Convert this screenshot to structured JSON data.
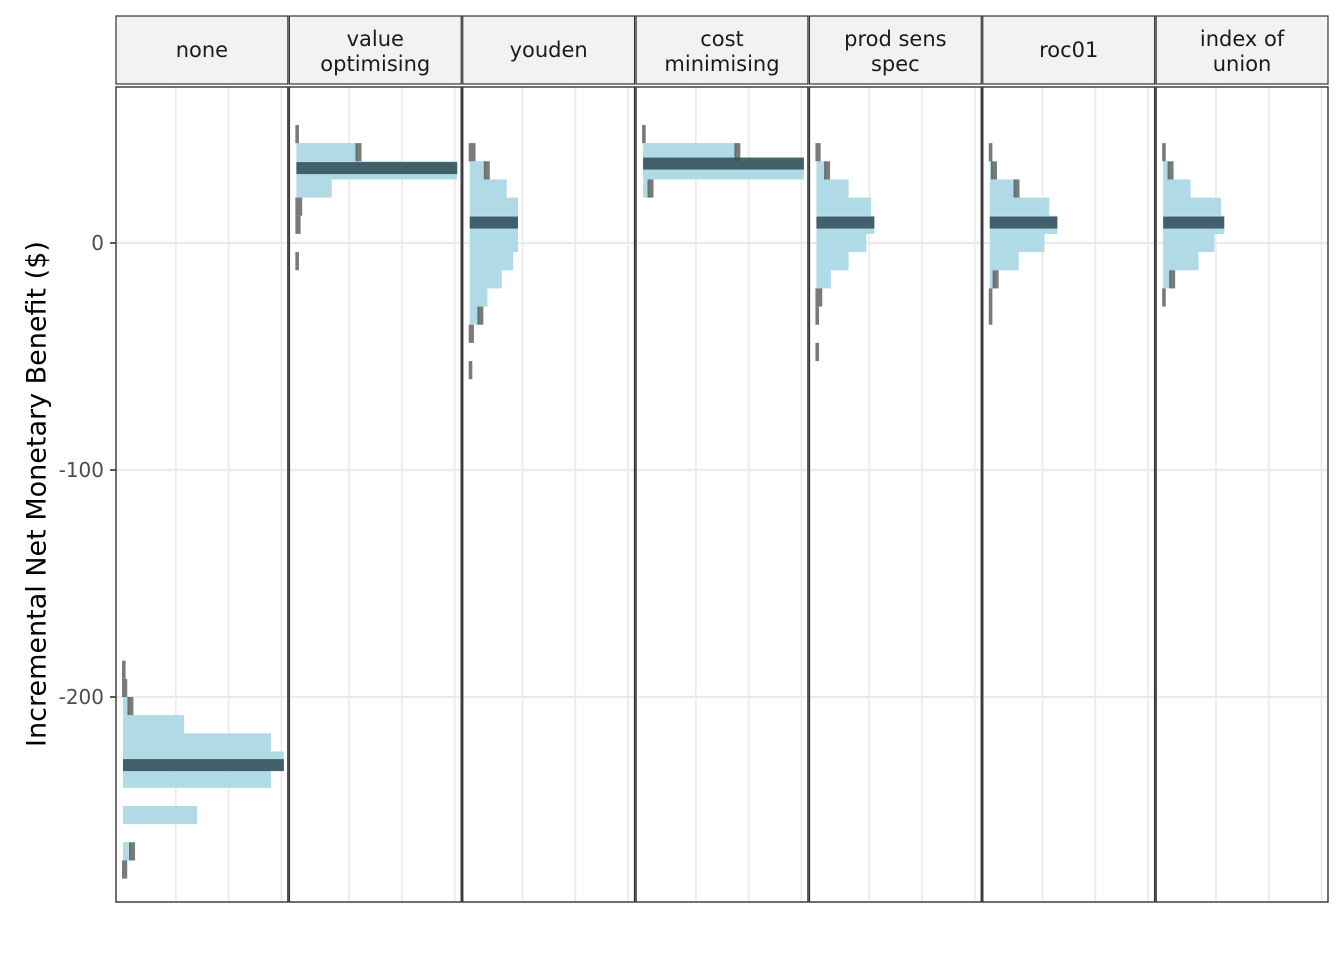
{
  "chart_data": {
    "type": "histogram",
    "orientation": "horizontal",
    "ylabel": "Incremental Net Monetary Benefit ($)",
    "xlabel": "",
    "ylim": [
      -290,
      70
    ],
    "yticks": [
      0,
      -100,
      -200
    ],
    "ytick_labels": [
      "0",
      "-100",
      "-200"
    ],
    "bin_width": 8,
    "grid": true,
    "legend": "none",
    "colors": {
      "bar_fill": "#add8e6",
      "overlay_fill": "#4d4d4d",
      "median_band": "#36525b",
      "grid": "#ebebeb",
      "strip_fill": "#f2f2f2",
      "panel_border": "#333333"
    },
    "panels": [
      {
        "label": "none",
        "median": -230,
        "bins": [
          {
            "y": -276,
            "fill": 0.0,
            "overlay": 0.02
          },
          {
            "y": -268,
            "fill": 0.05,
            "overlay": 0.1
          },
          {
            "y": -252,
            "fill": 0.46,
            "overlay": 0.0
          },
          {
            "y": -244,
            "fill": 0.0,
            "overlay": 0.0
          },
          {
            "y": -236,
            "fill": 0.92,
            "overlay": 0.0
          },
          {
            "y": -228,
            "fill": 1.0,
            "overlay": 0.0
          },
          {
            "y": -220,
            "fill": 0.92,
            "overlay": 0.0
          },
          {
            "y": -212,
            "fill": 0.38,
            "overlay": 0.0
          },
          {
            "y": -204,
            "fill": 0.04,
            "overlay": 0.1
          },
          {
            "y": -196,
            "fill": 0.0,
            "overlay": 0.02
          },
          {
            "y": -188,
            "fill": 0.0,
            "overlay": 0.01
          }
        ]
      },
      {
        "label": "value optimising",
        "median": 33,
        "bins": [
          {
            "y": -8,
            "fill": 0.0,
            "overlay": 0.01
          },
          {
            "y": 8,
            "fill": 0.0,
            "overlay": 0.02
          },
          {
            "y": 16,
            "fill": 0.0,
            "overlay": 0.03
          },
          {
            "y": 24,
            "fill": 0.22,
            "overlay": 0.0
          },
          {
            "y": 32,
            "fill": 1.0,
            "overlay": 0.0
          },
          {
            "y": 40,
            "fill": 0.38,
            "overlay": 0.41
          },
          {
            "y": 48,
            "fill": 0.0,
            "overlay": 0.01
          }
        ]
      },
      {
        "label": "youden",
        "median": 9,
        "bins": [
          {
            "y": -56,
            "fill": 0.0,
            "overlay": 0.01
          },
          {
            "y": -40,
            "fill": 0.0,
            "overlay": 0.02
          },
          {
            "y": -32,
            "fill": 0.06,
            "overlay": 0.03
          },
          {
            "y": -24,
            "fill": 0.11,
            "overlay": 0.0
          },
          {
            "y": -16,
            "fill": 0.2,
            "overlay": 0.0
          },
          {
            "y": -8,
            "fill": 0.27,
            "overlay": 0.0
          },
          {
            "y": 0,
            "fill": 0.3,
            "overlay": 0.0
          },
          {
            "y": 8,
            "fill": 0.3,
            "overlay": 0.0
          },
          {
            "y": 16,
            "fill": 0.3,
            "overlay": 0.0
          },
          {
            "y": 24,
            "fill": 0.23,
            "overlay": 0.0
          },
          {
            "y": 32,
            "fill": 0.1,
            "overlay": 0.11
          },
          {
            "y": 40,
            "fill": 0.0,
            "overlay": 0.03
          }
        ]
      },
      {
        "label": "cost minimising",
        "median": 35,
        "bins": [
          {
            "y": 24,
            "fill": 0.04,
            "overlay": 0.07
          },
          {
            "y": 32,
            "fill": 1.0,
            "overlay": 0.0
          },
          {
            "y": 40,
            "fill": 0.58,
            "overlay": 0.61
          },
          {
            "y": 48,
            "fill": 0.0,
            "overlay": 0.01
          }
        ]
      },
      {
        "label": "prod sens spec",
        "median": 9,
        "bins": [
          {
            "y": -48,
            "fill": 0.0,
            "overlay": 0.01
          },
          {
            "y": -32,
            "fill": 0.0,
            "overlay": 0.01
          },
          {
            "y": -24,
            "fill": 0.0,
            "overlay": 0.03
          },
          {
            "y": -16,
            "fill": 0.09,
            "overlay": 0.0
          },
          {
            "y": -8,
            "fill": 0.2,
            "overlay": 0.0
          },
          {
            "y": 0,
            "fill": 0.31,
            "overlay": 0.0
          },
          {
            "y": 8,
            "fill": 0.36,
            "overlay": 0.0
          },
          {
            "y": 16,
            "fill": 0.34,
            "overlay": 0.0
          },
          {
            "y": 24,
            "fill": 0.2,
            "overlay": 0.0
          },
          {
            "y": 32,
            "fill": 0.06,
            "overlay": 0.07
          },
          {
            "y": 40,
            "fill": 0.0,
            "overlay": 0.02
          }
        ]
      },
      {
        "label": "roc01",
        "median": 9,
        "bins": [
          {
            "y": -32,
            "fill": 0.0,
            "overlay": 0.01
          },
          {
            "y": -24,
            "fill": 0.0,
            "overlay": 0.01
          },
          {
            "y": -16,
            "fill": 0.03,
            "overlay": 0.04
          },
          {
            "y": -8,
            "fill": 0.18,
            "overlay": 0.0
          },
          {
            "y": 0,
            "fill": 0.34,
            "overlay": 0.0
          },
          {
            "y": 8,
            "fill": 0.42,
            "overlay": 0.0
          },
          {
            "y": 16,
            "fill": 0.37,
            "overlay": 0.0
          },
          {
            "y": 24,
            "fill": 0.16,
            "overlay": 0.17
          },
          {
            "y": 32,
            "fill": 0.02,
            "overlay": 0.03
          },
          {
            "y": 40,
            "fill": 0.0,
            "overlay": 0.01
          }
        ]
      },
      {
        "label": "index of union",
        "median": 9,
        "bins": [
          {
            "y": -24,
            "fill": 0.0,
            "overlay": 0.01
          },
          {
            "y": -16,
            "fill": 0.05,
            "overlay": 0.08
          },
          {
            "y": -8,
            "fill": 0.22,
            "overlay": 0.0
          },
          {
            "y": 0,
            "fill": 0.32,
            "overlay": 0.0
          },
          {
            "y": 8,
            "fill": 0.38,
            "overlay": 0.0
          },
          {
            "y": 16,
            "fill": 0.36,
            "overlay": 0.0
          },
          {
            "y": 24,
            "fill": 0.17,
            "overlay": 0.0
          },
          {
            "y": 32,
            "fill": 0.04,
            "overlay": 0.08
          },
          {
            "y": 40,
            "fill": 0.0,
            "overlay": 0.01
          }
        ]
      }
    ]
  }
}
